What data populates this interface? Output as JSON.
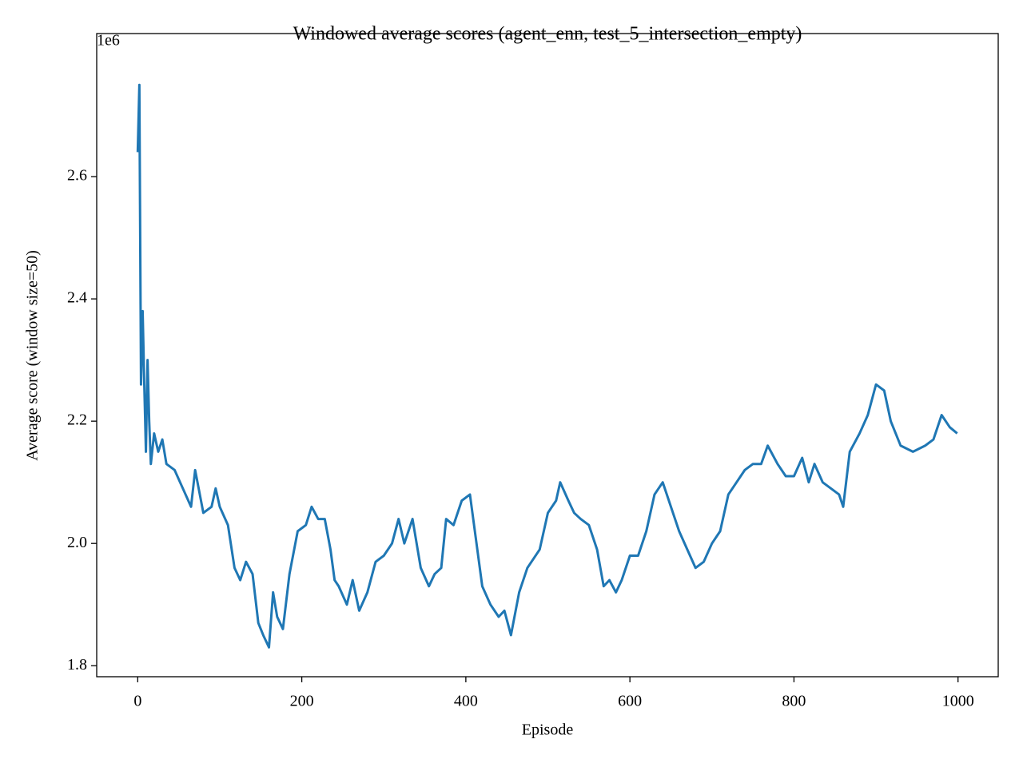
{
  "chart_data": {
    "type": "line",
    "title": "Windowed average scores (agent_enn, test_5_intersection_empty)",
    "x_label": "Episode",
    "y_label": "Average score (window size=50)",
    "y_offset_label": "1e6",
    "xlim": [
      -50,
      1049
    ],
    "ylim": [
      1.782,
      2.834
    ],
    "xticks": [
      0,
      200,
      400,
      600,
      800,
      1000
    ],
    "yticks": [
      1.8,
      {
        "value": 2.0,
        "label": "2.0"
      },
      2.2,
      2.4,
      2.6
    ],
    "grid": false,
    "series": [
      {
        "name": "Average score",
        "color": "#1f77b4",
        "x": [
          0,
          2,
          4,
          6,
          8,
          10,
          12,
          14,
          16,
          20,
          25,
          30,
          35,
          45,
          55,
          65,
          70,
          80,
          90,
          95,
          100,
          110,
          118,
          125,
          132,
          140,
          147,
          153,
          160,
          165,
          170,
          177,
          185,
          195,
          205,
          212,
          220,
          228,
          235,
          240,
          245,
          255,
          262,
          270,
          280,
          290,
          300,
          310,
          318,
          325,
          335,
          345,
          355,
          362,
          370,
          376,
          385,
          395,
          405,
          412,
          420,
          430,
          440,
          447,
          455,
          465,
          475,
          490,
          500,
          510,
          515,
          525,
          532,
          540,
          550,
          560,
          568,
          575,
          583,
          590,
          600,
          610,
          620,
          630,
          640,
          650,
          660,
          670,
          680,
          690,
          700,
          710,
          720,
          730,
          740,
          750,
          760,
          768,
          780,
          790,
          800,
          810,
          818,
          825,
          835,
          845,
          855,
          860,
          868,
          880,
          890,
          900,
          910,
          918,
          930,
          945,
          960,
          970,
          980,
          990,
          999
        ],
        "values": [
          2.64,
          2.75,
          2.26,
          2.38,
          2.26,
          2.15,
          2.3,
          2.2,
          2.13,
          2.18,
          2.15,
          2.17,
          2.13,
          2.12,
          2.09,
          2.06,
          2.12,
          2.05,
          2.06,
          2.09,
          2.06,
          2.03,
          1.96,
          1.94,
          1.97,
          1.95,
          1.87,
          1.85,
          1.83,
          1.92,
          1.88,
          1.86,
          1.95,
          2.02,
          2.03,
          2.06,
          2.04,
          2.04,
          1.99,
          1.94,
          1.93,
          1.9,
          1.94,
          1.89,
          1.92,
          1.97,
          1.98,
          2.0,
          2.04,
          2.0,
          2.04,
          1.96,
          1.93,
          1.95,
          1.96,
          2.04,
          2.03,
          2.07,
          2.08,
          2.01,
          1.93,
          1.9,
          1.88,
          1.89,
          1.85,
          1.92,
          1.96,
          1.99,
          2.05,
          2.07,
          2.1,
          2.07,
          2.05,
          2.04,
          2.03,
          1.99,
          1.93,
          1.94,
          1.92,
          1.94,
          1.98,
          1.98,
          2.02,
          2.08,
          2.1,
          2.06,
          2.02,
          1.99,
          1.96,
          1.97,
          2.0,
          2.02,
          2.08,
          2.1,
          2.12,
          2.13,
          2.13,
          2.16,
          2.13,
          2.11,
          2.11,
          2.14,
          2.1,
          2.13,
          2.1,
          2.09,
          2.08,
          2.06,
          2.15,
          2.18,
          2.21,
          2.26,
          2.25,
          2.2,
          2.16,
          2.15,
          2.16,
          2.17,
          2.21,
          2.19,
          2.18
        ]
      }
    ]
  }
}
